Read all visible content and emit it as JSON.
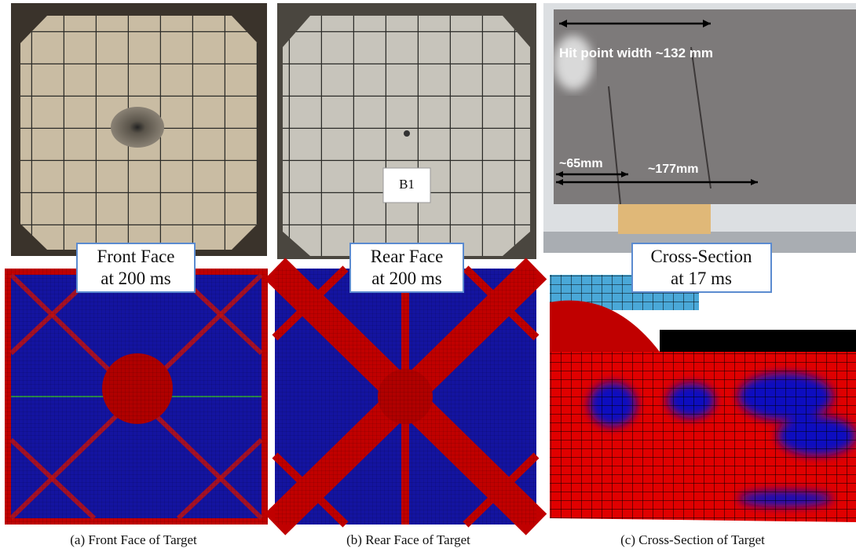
{
  "panels": [
    {
      "label_lines": [
        "Front Face",
        "at 200 ms"
      ],
      "caption": "(a) Front Face of Target"
    },
    {
      "label_lines": [
        "Rear Face",
        "at 200 ms"
      ],
      "caption": "(b) Rear Face of Target",
      "tag": "B1"
    },
    {
      "label_lines": [
        "Cross-Section",
        "at 17 ms"
      ],
      "caption": "(c) Cross-Section of Target",
      "annotations": [
        "Hit point width ~132 mm",
        "~65mm",
        "~177mm"
      ]
    }
  ]
}
